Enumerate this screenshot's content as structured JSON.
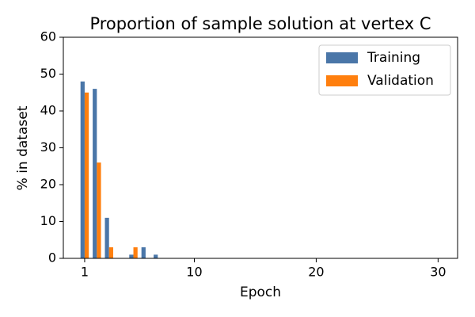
{
  "chart_data": {
    "type": "bar",
    "title": "Proportion of sample solution at vertex C",
    "x_label": "Epoch",
    "y_label": "% in dataset",
    "x": [
      1,
      2,
      3,
      4,
      5,
      6,
      7
    ],
    "series": [
      {
        "name": "Training",
        "color": "#4a76a8",
        "values": [
          48,
          46,
          11,
          0,
          1,
          3,
          1
        ]
      },
      {
        "name": "Validation",
        "color": "#ff7f0e",
        "values": [
          45,
          26,
          3,
          0,
          3,
          0,
          0
        ]
      }
    ],
    "xlim": [
      -0.75,
      31.6
    ],
    "xticks": [
      1,
      10,
      20,
      30
    ],
    "ylim": [
      0,
      60
    ],
    "yticks": [
      0,
      10,
      20,
      30,
      40,
      50,
      60
    ],
    "grid": false,
    "legend": "upper-right"
  }
}
